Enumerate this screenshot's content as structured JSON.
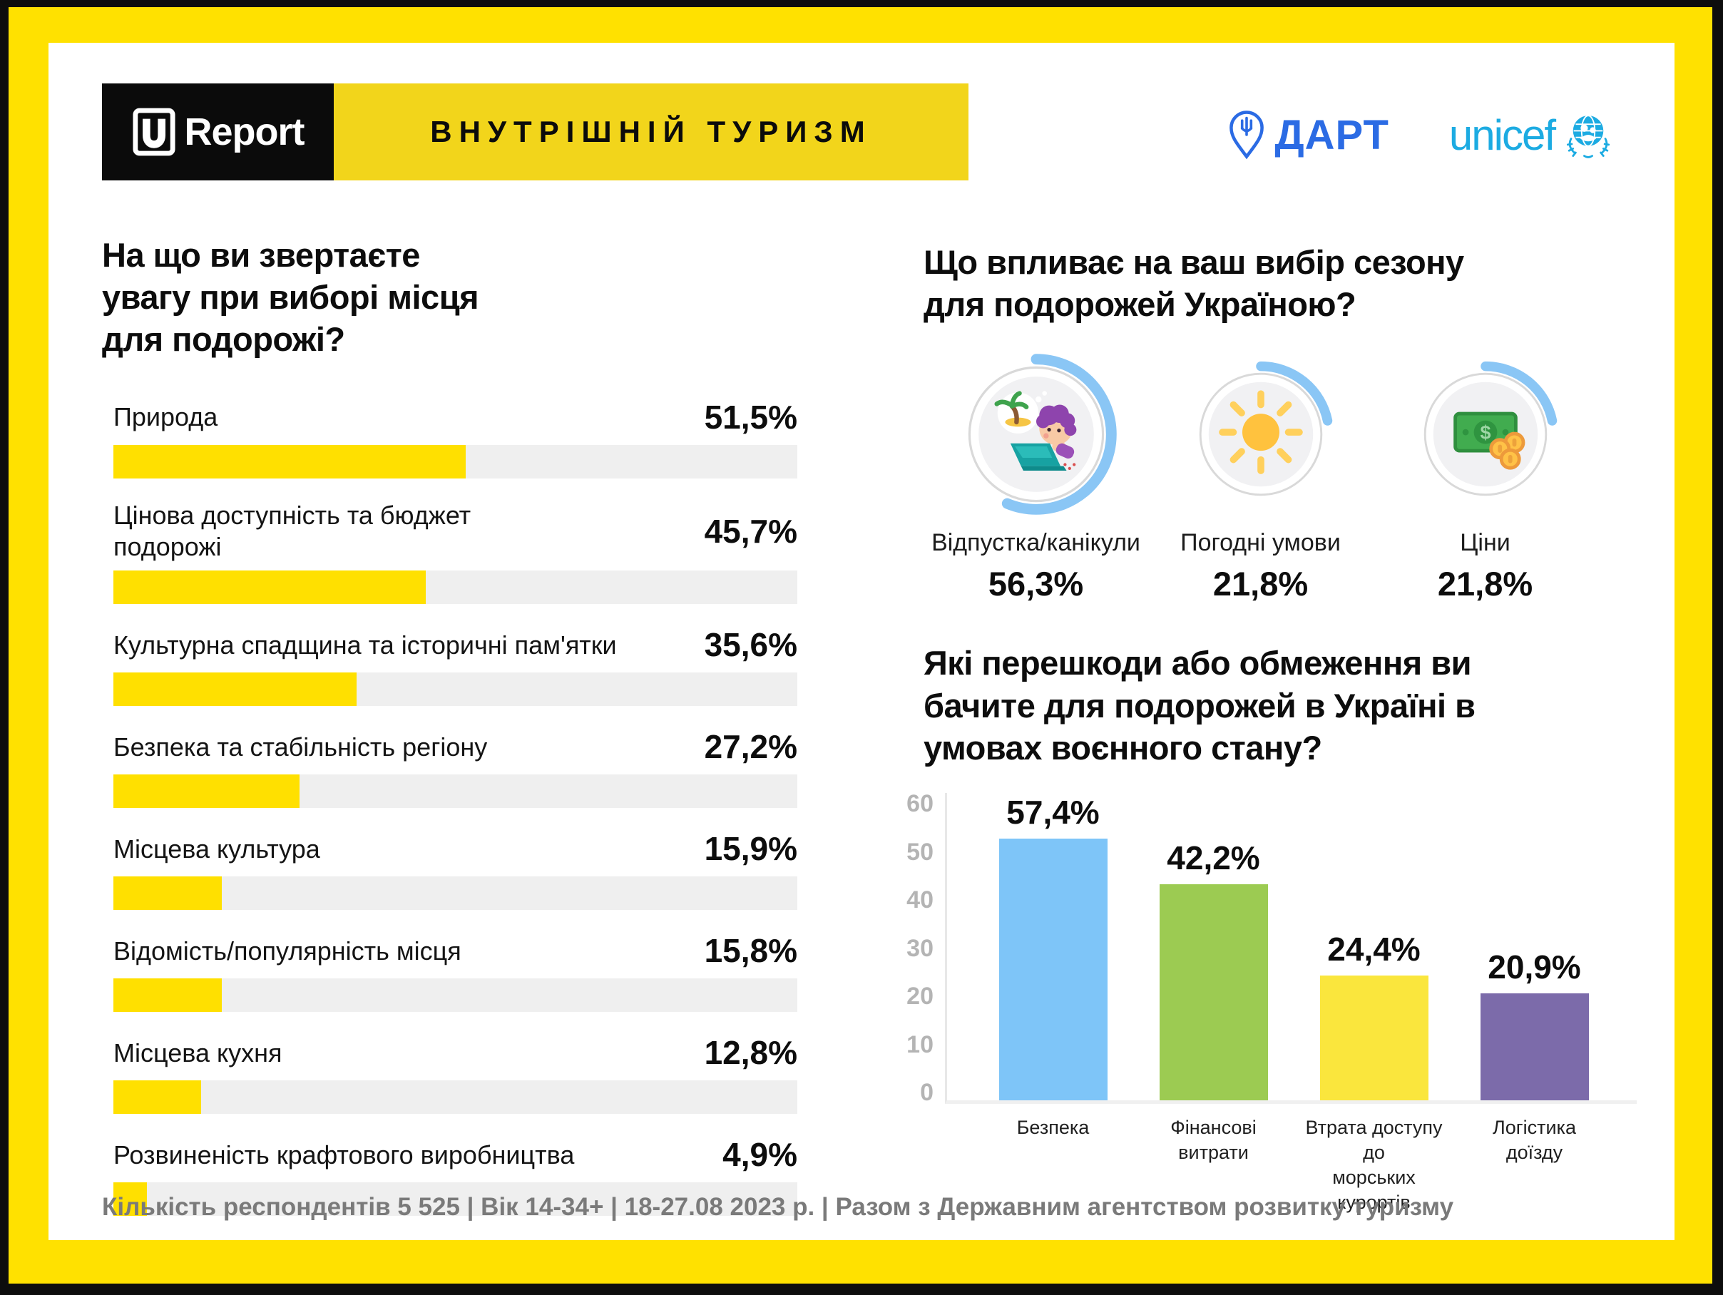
{
  "colors": {
    "frame_yellow": "#FFE100",
    "banner_yellow": "#F2D51B",
    "bar_yellow": "#FFE000",
    "bar_track": "#EFEFEF",
    "ring_blue": "#8AC6F5",
    "dart_blue": "#2B6BE4",
    "unicef_blue": "#1CABE2"
  },
  "header": {
    "logo_text": "Report",
    "banner_title": "ВНУТРІШНІЙ ТУРИЗМ",
    "partners": {
      "dart": "ДАРТ",
      "unicef": "unicef"
    }
  },
  "left_chart": {
    "title": "На що ви звертаєте\nувагу при виборі місця\nдля подорожі?",
    "items": [
      {
        "label": "Природа",
        "value": "51,5%",
        "pct": 51.5
      },
      {
        "label": "Цінова доступність та бюджет\nподорожі",
        "value": "45,7%",
        "pct": 45.7
      },
      {
        "label": "Культурна спадщина та історичні пам'ятки",
        "value": "35,6%",
        "pct": 35.6
      },
      {
        "label": "Безпека та стабільність регіону",
        "value": "27,2%",
        "pct": 27.2
      },
      {
        "label": "Місцева культура",
        "value": "15,9%",
        "pct": 15.9
      },
      {
        "label": "Відомість/популярність місця",
        "value": "15,8%",
        "pct": 15.8
      },
      {
        "label": "Місцева кухня",
        "value": "12,8%",
        "pct": 12.8
      },
      {
        "label": "Розвиненість крафтового виробництва",
        "value": "4,9%",
        "pct": 4.9
      }
    ]
  },
  "season": {
    "title": "Що впливає на ваш вибір сезону\nдля подорожей Україною?",
    "ring_color": "#8AC6F5",
    "items": [
      {
        "label": "Відпустка/канікули",
        "value": "56,3%",
        "pct": 56.3,
        "icon": "vacation-icon"
      },
      {
        "label": "Погодні умови",
        "value": "21,8%",
        "pct": 21.8,
        "icon": "sun-icon"
      },
      {
        "label": "Ціни",
        "value": "21,8%",
        "pct": 21.8,
        "icon": "money-icon"
      }
    ]
  },
  "obstacles": {
    "title": "Які перешкоди або обмеження ви\nбачите для подорожей в Україні в\nумовах воєнного стану?",
    "y_max": 60,
    "y_ticks": [
      "60",
      "50",
      "40",
      "30",
      "20",
      "10",
      "0"
    ],
    "bars": [
      {
        "label": "Безпека",
        "value": "57,4%",
        "pct": 57.4,
        "color": "#7EC5F8"
      },
      {
        "label": "Фінансові\nвитрати",
        "value": "42,2%",
        "pct": 42.2,
        "color": "#9CCB52"
      },
      {
        "label": "Втрата доступу до\nморських курортів",
        "value": "24,4%",
        "pct": 24.4,
        "color": "#FAE63D"
      },
      {
        "label": "Логістика\nдоїзду",
        "value": "20,9%",
        "pct": 20.9,
        "color": "#7C6BAA"
      }
    ]
  },
  "footer": {
    "text": "Кількість респондентів 5 525 |  Вік 14-34+ | 18-27.08 2023 р. | Разом з Державним агентством розвитку туризму"
  },
  "chart_data": [
    {
      "type": "bar",
      "orientation": "horizontal",
      "title": "На що ви звертаєте увагу при виборі місця для подорожі?",
      "categories": [
        "Природа",
        "Цінова доступність та бюджет подорожі",
        "Культурна спадщина та історичні пам'ятки",
        "Безпека та стабільність регіону",
        "Місцева культура",
        "Відомість/популярність місця",
        "Місцева кухня",
        "Розвиненість крафтового виробництва"
      ],
      "values": [
        51.5,
        45.7,
        35.6,
        27.2,
        15.9,
        15.8,
        12.8,
        4.9
      ],
      "unit": "%",
      "xlim": [
        0,
        100
      ],
      "bar_color": "#FFE000",
      "track_color": "#EFEFEF",
      "grid": false
    },
    {
      "type": "pie",
      "variant": "progress-rings",
      "title": "Що впливає на ваш вибір сезону для подорожей Україною?",
      "categories": [
        "Відпустка/канікули",
        "Погодні умови",
        "Ціни"
      ],
      "values": [
        56.3,
        21.8,
        21.8
      ],
      "unit": "%",
      "ring_color": "#8AC6F5"
    },
    {
      "type": "bar",
      "orientation": "vertical",
      "title": "Які перешкоди або обмеження ви бачите для подорожей в Україні в умовах воєнного стану?",
      "categories": [
        "Безпека",
        "Фінансові витрати",
        "Втрата доступу до морських курортів",
        "Логістика доїзду"
      ],
      "values": [
        57.4,
        42.2,
        24.4,
        20.9
      ],
      "unit": "%",
      "colors": [
        "#7EC5F8",
        "#9CCB52",
        "#FAE63D",
        "#7C6BAA"
      ],
      "ylim": [
        0,
        60
      ],
      "yticks": [
        0,
        10,
        20,
        30,
        40,
        50,
        60
      ],
      "grid": false
    }
  ]
}
